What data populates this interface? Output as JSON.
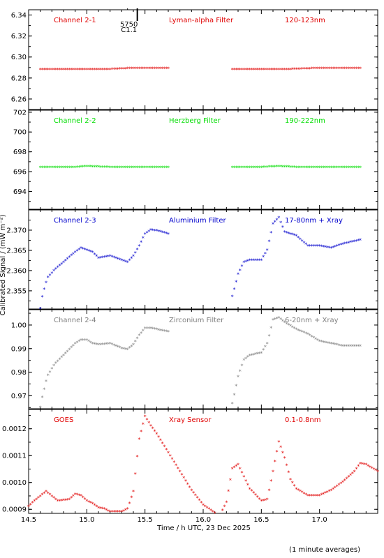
{
  "figure": {
    "xlabel": "Time / h UTC, 23 Dec 2025",
    "ylabel": "Calibrated Signal / (mW m⁻²)",
    "footnote": "(1 minute averages)",
    "event_marker": {
      "line1": "5750",
      "line2": "C1.1",
      "x": 15.35
    }
  },
  "colors": {
    "red": "#e00000",
    "green": "#00dd00",
    "blue": "#0000cc",
    "grey": "#808080",
    "axis": "#000000"
  },
  "chart_data": [
    {
      "type": "scatter",
      "labels": [
        "Channel 2-1",
        "Lyman-alpha Filter",
        "120-123nm"
      ],
      "color": "red",
      "xlim": [
        14.5,
        17.5
      ],
      "ylim": [
        6.25,
        6.345
      ],
      "yticks": [
        6.26,
        6.28,
        6.3,
        6.32,
        6.34
      ],
      "ytick_labels": [
        "6.26",
        "6.28",
        "6.30",
        "6.32",
        "6.34"
      ],
      "segments": [
        {
          "x": [
            14.6,
            14.8,
            15.0,
            15.2,
            15.4,
            15.6,
            15.7
          ],
          "y": [
            6.288,
            6.288,
            6.288,
            6.288,
            6.289,
            6.289,
            6.289
          ]
        },
        {
          "x": [
            16.25,
            16.5,
            16.75,
            17.0,
            17.25,
            17.35
          ],
          "y": [
            6.288,
            6.288,
            6.288,
            6.289,
            6.289,
            6.289
          ]
        }
      ]
    },
    {
      "type": "scatter",
      "labels": [
        "Channel 2-2",
        "Herzberg Filter",
        "190-222nm"
      ],
      "color": "green",
      "xlim": [
        14.5,
        17.5
      ],
      "ylim": [
        692.2,
        702.2
      ],
      "yticks": [
        694,
        696,
        698,
        700,
        702
      ],
      "ytick_labels": [
        "694",
        "696",
        "698",
        "700",
        "702"
      ],
      "segments": [
        {
          "x": [
            14.6,
            14.9,
            15.0,
            15.2,
            15.4,
            15.6,
            15.7
          ],
          "y": [
            696.4,
            696.4,
            696.5,
            696.4,
            696.4,
            696.4,
            696.4
          ]
        },
        {
          "x": [
            16.25,
            16.5,
            16.65,
            16.8,
            17.0,
            17.2,
            17.35
          ],
          "y": [
            696.4,
            696.4,
            696.5,
            696.4,
            696.4,
            696.4,
            696.4
          ]
        }
      ]
    },
    {
      "type": "scatter",
      "labels": [
        "Channel 2-3",
        "Aluminium Filter",
        "17-80nm + Xray"
      ],
      "color": "blue",
      "xlim": [
        14.5,
        17.5
      ],
      "ylim": [
        2.3505,
        2.375
      ],
      "yticks": [
        2.355,
        2.36,
        2.365,
        2.37
      ],
      "ytick_labels": [
        "2.355",
        "2.360",
        "2.365",
        "2.370"
      ],
      "segments": [
        {
          "x": [
            14.6,
            14.62,
            14.66,
            14.72,
            14.8,
            14.9,
            14.95,
            15.0,
            15.05,
            15.1,
            15.2,
            15.3,
            15.35,
            15.4,
            15.45,
            15.5,
            15.55,
            15.6,
            15.7
          ],
          "y": [
            2.3505,
            2.354,
            2.358,
            2.36,
            2.362,
            2.3645,
            2.3655,
            2.365,
            2.3645,
            2.363,
            2.3635,
            2.3625,
            2.362,
            2.3635,
            2.366,
            2.369,
            2.37,
            2.3698,
            2.369
          ]
        },
        {
          "x": [
            16.25,
            16.3,
            16.35,
            16.4,
            16.5,
            16.55,
            16.6,
            16.65,
            16.7,
            16.8,
            16.9,
            17.0,
            17.1,
            17.2,
            17.35
          ],
          "y": [
            2.3535,
            2.359,
            2.362,
            2.3625,
            2.3625,
            2.365,
            2.3715,
            2.373,
            2.3695,
            2.3685,
            2.366,
            2.366,
            2.3655,
            2.3665,
            2.3675
          ]
        }
      ]
    },
    {
      "type": "scatter",
      "labels": [
        "Channel 2-4",
        "Zirconium Filter",
        "6-20nm + Xray"
      ],
      "color": "grey",
      "xlim": [
        14.5,
        17.5
      ],
      "ylim": [
        0.9645,
        1.0065
      ],
      "yticks": [
        0.97,
        0.98,
        0.99,
        1.0
      ],
      "ytick_labels": [
        "0.97",
        "0.98",
        "0.99",
        "1.00"
      ],
      "segments": [
        {
          "x": [
            14.6,
            14.62,
            14.66,
            14.72,
            14.8,
            14.9,
            14.95,
            15.0,
            15.05,
            15.1,
            15.2,
            15.3,
            15.35,
            15.4,
            15.45,
            15.5,
            15.55,
            15.6,
            15.7
          ],
          "y": [
            0.965,
            0.97,
            0.978,
            0.983,
            0.987,
            0.992,
            0.9935,
            0.9935,
            0.992,
            0.9915,
            0.992,
            0.99,
            0.9895,
            0.9915,
            0.9955,
            0.9985,
            0.9985,
            0.998,
            0.997
          ]
        },
        {
          "x": [
            16.25,
            16.3,
            16.35,
            16.4,
            16.5,
            16.55,
            16.6,
            16.65,
            16.7,
            16.8,
            16.9,
            17.0,
            17.1,
            17.2,
            17.35
          ],
          "y": [
            0.9665,
            0.978,
            0.985,
            0.987,
            0.988,
            0.992,
            1.002,
            1.003,
            1.001,
            0.998,
            0.996,
            0.993,
            0.992,
            0.991,
            0.991
          ]
        }
      ]
    },
    {
      "type": "scatter",
      "labels": [
        "GOES",
        "Xray Sensor",
        "0.1-0.8nm"
      ],
      "color": "red",
      "xlim": [
        14.5,
        17.5
      ],
      "ylim": [
        0.000885,
        0.001272
      ],
      "yticks": [
        0.0009,
        0.001,
        0.0011,
        0.0012
      ],
      "ytick_labels": [
        "0.0009",
        "0.0010",
        "0.0011",
        "0.0012"
      ],
      "xticks": [
        14.5,
        15.0,
        15.5,
        16.0,
        16.5,
        17.0
      ],
      "xtick_labels": [
        "14.5",
        "15.0",
        "15.5",
        "16.0",
        "16.5",
        "17.0"
      ],
      "segments": [
        {
          "x": [
            14.5,
            14.55,
            14.65,
            14.75,
            14.85,
            14.9,
            14.95,
            15.0,
            15.05,
            15.1,
            15.15,
            15.2,
            15.3,
            15.35,
            15.4,
            15.45,
            15.5,
            15.55,
            15.6,
            15.7,
            15.8,
            15.9,
            16.0,
            16.1,
            16.15,
            16.2,
            16.25,
            16.3,
            16.4,
            16.5,
            16.55,
            16.6,
            16.65,
            16.7,
            16.75,
            16.8,
            16.9,
            17.0,
            17.1,
            17.2,
            17.3,
            17.35,
            17.4,
            17.5
          ],
          "y": [
            0.00091,
            0.00093,
            0.000965,
            0.00093,
            0.000935,
            0.000955,
            0.00095,
            0.00093,
            0.00092,
            0.000905,
            0.0009,
            0.00089,
            0.00089,
            0.0009,
            0.000965,
            0.00116,
            0.001245,
            0.00121,
            0.00118,
            0.00111,
            0.00104,
            0.00097,
            0.000915,
            0.000885,
            0.00088,
            0.000925,
            0.00105,
            0.001065,
            0.000975,
            0.00093,
            0.000935,
            0.00104,
            0.00115,
            0.00109,
            0.00101,
            0.000975,
            0.00095,
            0.00095,
            0.00097,
            0.001,
            0.00104,
            0.00107,
            0.001065,
            0.00104
          ]
        }
      ]
    }
  ]
}
